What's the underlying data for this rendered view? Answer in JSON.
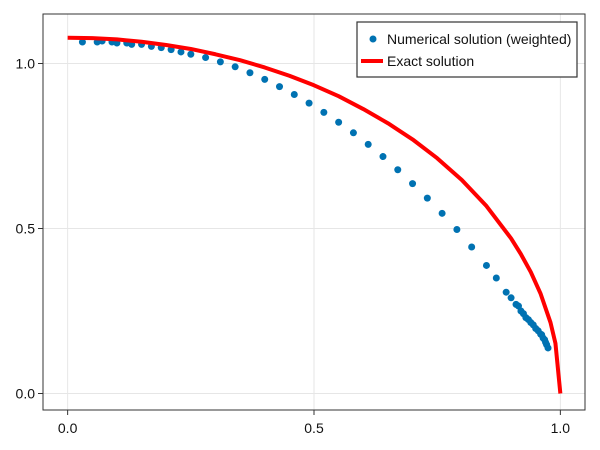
{
  "chart_data": {
    "type": "line",
    "xlim": [
      -0.05,
      1.05
    ],
    "ylim": [
      -0.05,
      1.15
    ],
    "grid": true,
    "legend_position": "top-right",
    "xticks": [
      0.0,
      0.5,
      1.0
    ],
    "yticks": [
      0.0,
      0.5,
      1.0
    ],
    "xtick_labels": [
      "0.0",
      "0.5",
      "1.0"
    ],
    "ytick_labels": [
      "0.0",
      "0.5",
      "1.0"
    ],
    "series": [
      {
        "name": "Numerical solution (weighted)",
        "kind": "scatter",
        "color": "#0072b2",
        "x": [
          0.03,
          0.06,
          0.07,
          0.09,
          0.1,
          0.12,
          0.13,
          0.15,
          0.17,
          0.19,
          0.21,
          0.23,
          0.25,
          0.28,
          0.31,
          0.34,
          0.37,
          0.4,
          0.43,
          0.46,
          0.49,
          0.52,
          0.55,
          0.58,
          0.61,
          0.64,
          0.67,
          0.7,
          0.73,
          0.76,
          0.79,
          0.82,
          0.85,
          0.87,
          0.89,
          0.9,
          0.91,
          0.915,
          0.92,
          0.925,
          0.93,
          0.935,
          0.94,
          0.945,
          0.95,
          0.955,
          0.96,
          0.962,
          0.965,
          0.968,
          0.97,
          0.972,
          0.975
        ],
        "y": [
          1.065,
          1.065,
          1.068,
          1.065,
          1.062,
          1.062,
          1.058,
          1.058,
          1.052,
          1.048,
          1.042,
          1.035,
          1.028,
          1.018,
          1.005,
          0.99,
          0.972,
          0.952,
          0.93,
          0.906,
          0.88,
          0.852,
          0.822,
          0.79,
          0.755,
          0.718,
          0.678,
          0.636,
          0.592,
          0.546,
          0.497,
          0.444,
          0.388,
          0.35,
          0.307,
          0.29,
          0.27,
          0.265,
          0.25,
          0.242,
          0.23,
          0.224,
          0.215,
          0.208,
          0.197,
          0.19,
          0.18,
          0.178,
          0.168,
          0.163,
          0.155,
          0.148,
          0.138
        ]
      },
      {
        "name": "Exact solution",
        "kind": "line",
        "color": "#ff0000",
        "x": [
          0.0,
          0.05,
          0.1,
          0.15,
          0.2,
          0.25,
          0.3,
          0.35,
          0.4,
          0.45,
          0.5,
          0.55,
          0.6,
          0.65,
          0.7,
          0.75,
          0.8,
          0.85,
          0.9,
          0.92,
          0.94,
          0.96,
          0.98,
          0.99,
          1.0
        ],
        "y": [
          1.078,
          1.077,
          1.073,
          1.066,
          1.056,
          1.044,
          1.028,
          1.01,
          0.988,
          0.963,
          0.934,
          0.901,
          0.862,
          0.819,
          0.77,
          0.713,
          0.647,
          0.568,
          0.47,
          0.422,
          0.368,
          0.302,
          0.215,
          0.152,
          0.0
        ]
      }
    ]
  }
}
